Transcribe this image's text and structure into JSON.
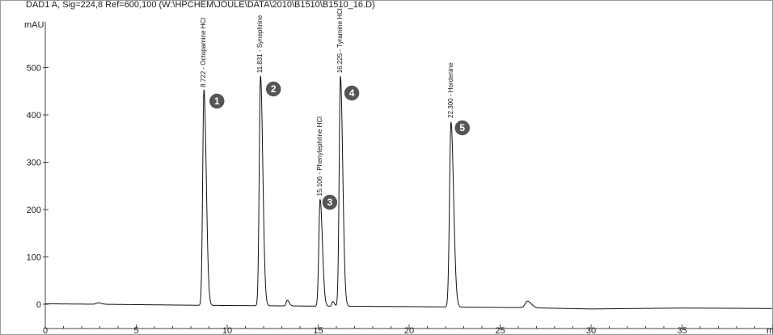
{
  "chart_data": {
    "type": "line",
    "title": "DAD1 A, Sig=224,8 Ref=600,100 (W:\\HPCHEM\\JOULE\\DATA\\2010\\B1510\\B1510_16.D)",
    "ylabel": "mAU",
    "xlabel": "",
    "xlim": [
      0,
      40
    ],
    "ylim": [
      -30,
      570
    ],
    "x_ticks": [
      0,
      5,
      10,
      15,
      20,
      25,
      30,
      35
    ],
    "x_tick_labels": [
      "0",
      "5",
      "10",
      "15",
      "20",
      "25",
      "30",
      "35"
    ],
    "x_unit_fragment": "m",
    "y_ticks": [
      0,
      100,
      200,
      300,
      400,
      500
    ],
    "y_tick_labels": [
      "0",
      "100",
      "200",
      "300",
      "400",
      "500"
    ],
    "grid": false,
    "baseline": [
      {
        "x": 0.0,
        "y": 1
      },
      {
        "x": 3.0,
        "y": 0
      },
      {
        "x": 8.0,
        "y": -2
      },
      {
        "x": 15.0,
        "y": -4
      },
      {
        "x": 20.0,
        "y": -5
      },
      {
        "x": 26.0,
        "y": -7
      },
      {
        "x": 30.0,
        "y": -10
      },
      {
        "x": 35.0,
        "y": -8
      },
      {
        "x": 40.0,
        "y": -9
      }
    ],
    "peaks": [
      {
        "rt": 8.722,
        "height": 455,
        "width": 0.07,
        "label": "8.722 - Octopamine HCl",
        "number": "1"
      },
      {
        "rt": 11.831,
        "height": 485,
        "width": 0.07,
        "label": "11.831 - Synephrine",
        "number": "2"
      },
      {
        "rt": 15.106,
        "height": 225,
        "width": 0.07,
        "label": "15.106 - Phenylephrine HCl",
        "number": "3"
      },
      {
        "rt": 16.225,
        "height": 485,
        "width": 0.07,
        "label": "16.225 - Tyramine HCl",
        "number": "4"
      },
      {
        "rt": 22.3,
        "height": 390,
        "width": 0.08,
        "label": "22.300 - Hordenine",
        "number": "5"
      }
    ],
    "minor_peaks": [
      {
        "rt": 2.9,
        "height": 3,
        "width": 0.1
      },
      {
        "rt": 13.3,
        "height": 12,
        "width": 0.06
      },
      {
        "rt": 15.8,
        "height": 10,
        "width": 0.05
      },
      {
        "rt": 26.5,
        "height": 14,
        "width": 0.12
      }
    ],
    "colors": {
      "trace": "#111111",
      "badge": "#555555",
      "axis": "#444444"
    }
  }
}
